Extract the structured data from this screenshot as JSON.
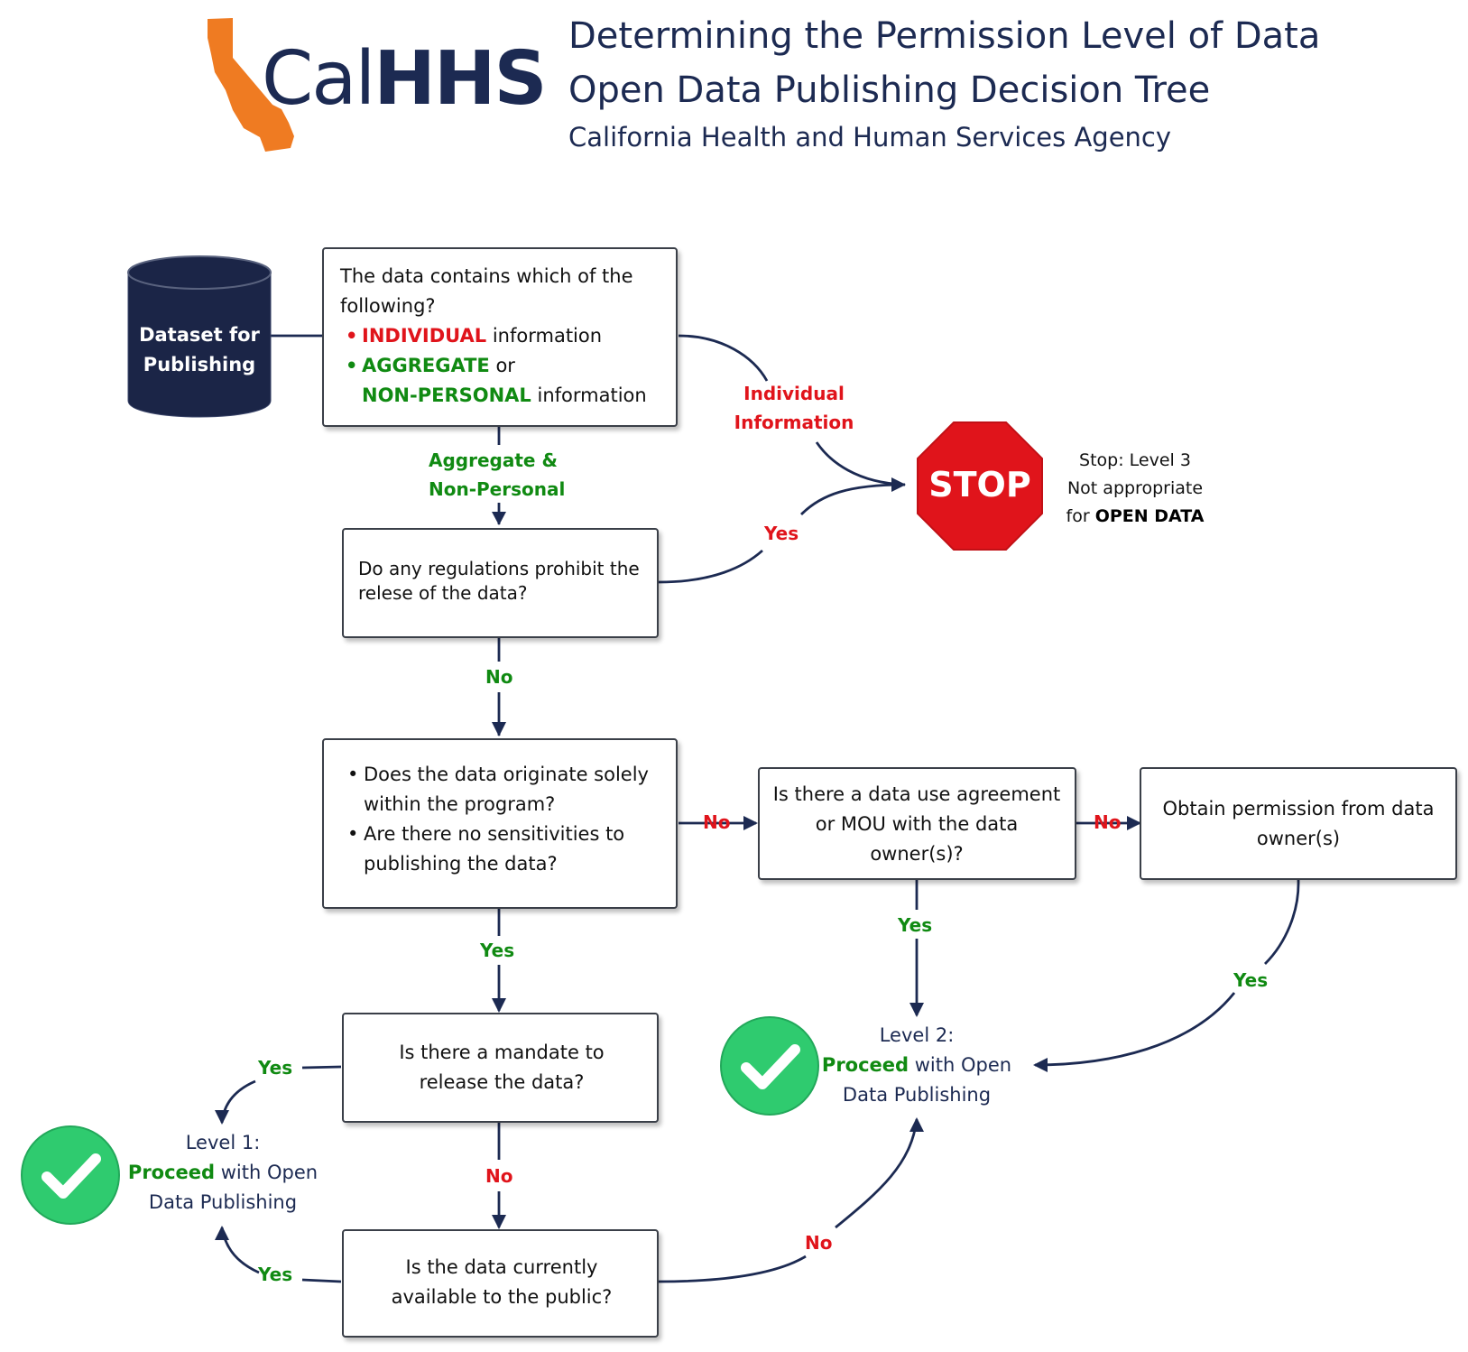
{
  "header": {
    "logo_light": "Cal",
    "logo_bold": "HHS",
    "title_line1": "Determining the Permission Level of Data",
    "title_line2": "Open Data Publishing Decision Tree",
    "subtitle": "California Health and Human Services Agency"
  },
  "dataset": {
    "line1": "Dataset for",
    "line2": "Publishing"
  },
  "q1": {
    "text": "The data contains which of the following?",
    "opt1_key": "INDIVIDUAL",
    "opt1_rest": " information",
    "opt2_key": "AGGREGATE",
    "opt2_rest": " or",
    "opt3_key": "NON-PERSONAL",
    "opt3_rest": " information"
  },
  "q2": {
    "text": "Do any regulations prohibit the relese of the data?"
  },
  "q3": {
    "item1": "Does the data originate solely within the program?",
    "item2": "Are there no sensitivities to publishing the data?"
  },
  "q4": {
    "text": "Is there a data use agreement or MOU with the data owner(s)?"
  },
  "q5": {
    "text": "Obtain permission from data owner(s)"
  },
  "q6": {
    "text": "Is there a mandate to release the data?"
  },
  "q7": {
    "text": "Is the data currently available to the public?"
  },
  "stop": {
    "sign": "STOP",
    "note1": "Stop: Level 3",
    "note2": "Not appropriate",
    "note3_pre": "for ",
    "note3_bold": "OPEN DATA"
  },
  "level1": {
    "line1": "Level 1:",
    "proceed": "Proceed",
    "rest": " with Open",
    "line3": "Data Publishing"
  },
  "level2": {
    "line1": "Level 2:",
    "proceed": "Proceed",
    "rest": " with Open",
    "line3": "Data Publishing"
  },
  "labels": {
    "individual_1": "Individual",
    "individual_2": "Information",
    "aggregate_1": "Aggregate &",
    "aggregate_2": "Non-Personal",
    "yes_stop": "Yes",
    "no_q2": "No",
    "no_q3": "No",
    "no_q4": "No",
    "yes_q3": "Yes",
    "yes_q4": "Yes",
    "yes_q5": "Yes",
    "yes_q6": "Yes",
    "no_q6": "No",
    "yes_q7": "Yes",
    "no_q7": "No"
  },
  "colors": {
    "navy": "#1c2a52",
    "cylinder": "#1b2547",
    "red": "#e0141b",
    "green": "#108a12",
    "check": "#2fcb6f",
    "california": "#ef7b22"
  }
}
